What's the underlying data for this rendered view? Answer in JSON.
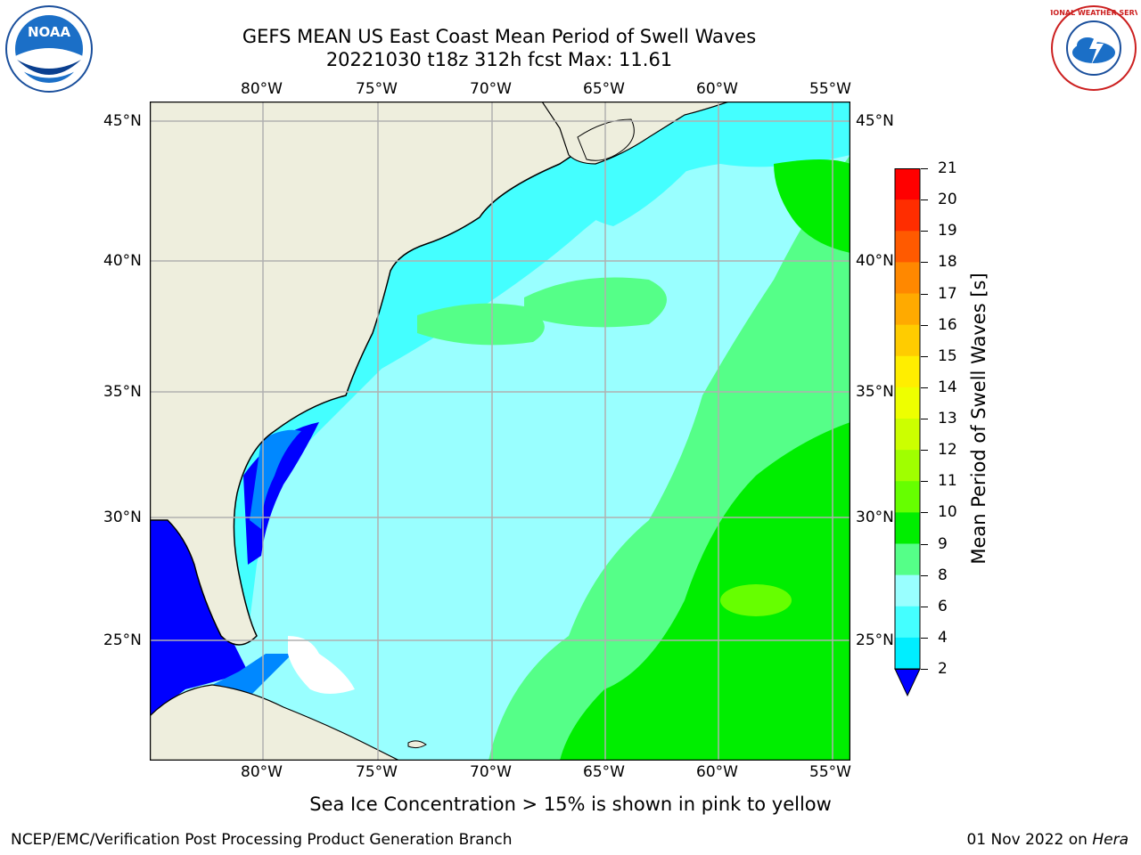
{
  "title": {
    "line1": "GEFS MEAN US East Coast Mean Period of Swell Waves",
    "line2": "20221030 t18z 312h fcst   Max: 11.61"
  },
  "logos": {
    "left_text": "NOAA",
    "right_text": "NATIONAL WEATHER SERVICE"
  },
  "map": {
    "lon_labels": [
      "80°W",
      "75°W",
      "70°W",
      "65°W",
      "60°W",
      "55°W"
    ],
    "lat_labels": [
      "45°N",
      "40°N",
      "35°N",
      "30°N",
      "25°N"
    ],
    "colors": {
      "land": "#eeeedd",
      "ocean_base": "#99ffff",
      "grid": "#b0b0b0"
    }
  },
  "colorbar": {
    "label": "Mean Period of Swell Waves [s]",
    "ticks": [
      "21",
      "20",
      "19",
      "18",
      "17",
      "16",
      "15",
      "14",
      "13",
      "12",
      "11",
      "10",
      "9",
      "8",
      "6",
      "4",
      "2"
    ],
    "colors": [
      "#ff0000",
      "#ff2d00",
      "#ff5a00",
      "#ff8800",
      "#ffaa00",
      "#ffcc00",
      "#ffee00",
      "#eeff00",
      "#ccff00",
      "#a0ff00",
      "#66ff00",
      "#00ee00",
      "#55ff88",
      "#99ffff",
      "#44ffff",
      "#00eeff",
      "#0088ff",
      "#0000ff"
    ]
  },
  "footer": {
    "note": "Sea Ice Concentration > 15% is shown in pink to yellow",
    "left": "NCEP/EMC/Verification Post Processing Product Generation Branch",
    "right_date": "01 Nov 2022 on ",
    "right_host": "Hera"
  }
}
